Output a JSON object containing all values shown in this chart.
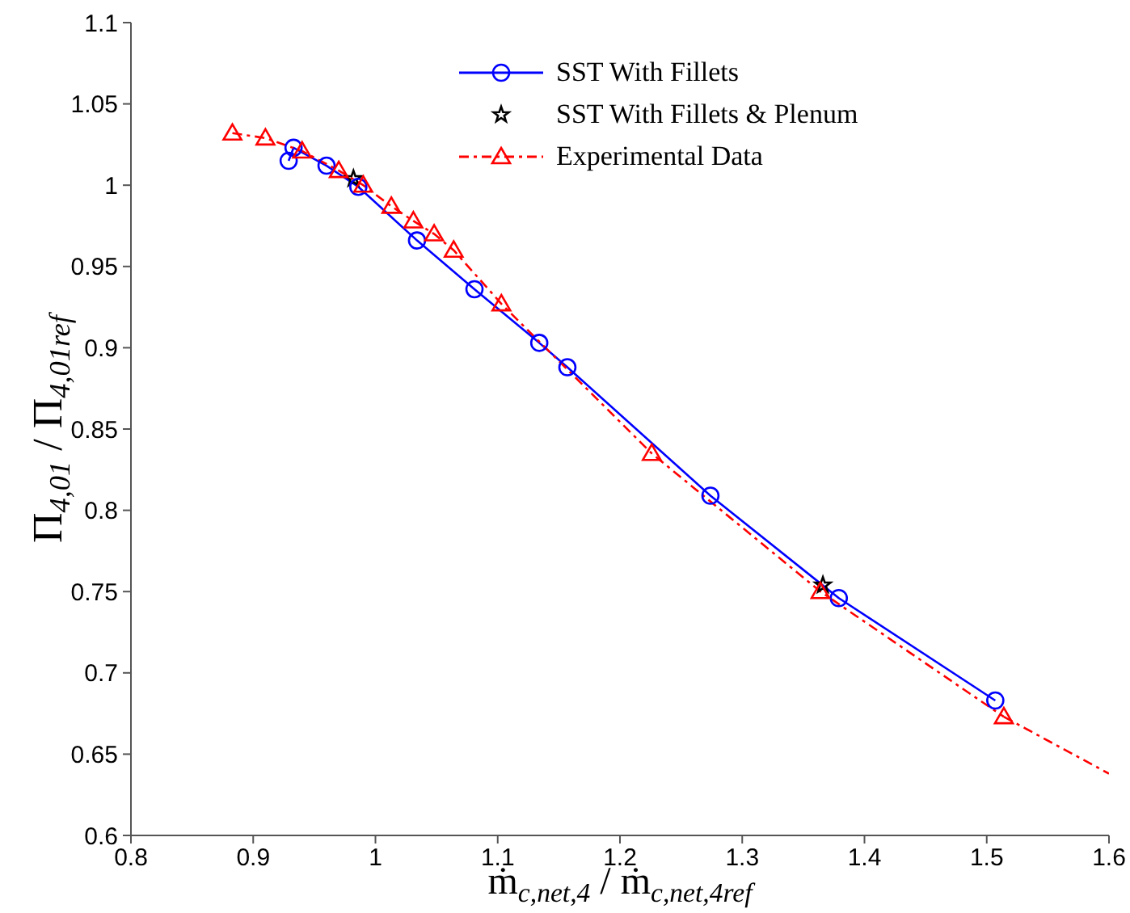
{
  "chart_data": {
    "type": "line",
    "xlabel": "ṁ$_{c,net,4}$ / ṁ$_{c,net,4ref}$",
    "ylabel": "Π$_{4,01}$ / Π$_{4,01ref}$",
    "xlim": [
      0.8,
      1.6
    ],
    "xticks": [
      0.8,
      0.9,
      1,
      1.1,
      1.2,
      1.3,
      1.4,
      1.5,
      1.6
    ],
    "ylim": [
      0.6,
      1.1
    ],
    "yticks": [
      0.6,
      0.65,
      0.7,
      0.75,
      0.8,
      0.85,
      0.9,
      0.95,
      1,
      1.05,
      1.1
    ],
    "grid": false,
    "legend": "top",
    "series": [
      {
        "name": "SST With Fillets",
        "color": "#0000ff",
        "marker": "circle",
        "line_style": "solid",
        "x": [
          0.929,
          0.933,
          0.96,
          0.986,
          1.034,
          1.081,
          1.134,
          1.157,
          1.274,
          1.379,
          1.507
        ],
        "values": [
          1.015,
          1.023,
          1.012,
          0.999,
          0.966,
          0.936,
          0.903,
          0.888,
          0.809,
          0.746,
          0.683
        ]
      },
      {
        "name": "SST With Fillets & Plenum",
        "color": "#000000",
        "type": "scatter",
        "marker": "star",
        "x": [
          0.982,
          1.366
        ],
        "values": [
          1.004,
          0.754
        ]
      },
      {
        "name": "Experimental Data",
        "color": "#ff0000",
        "marker": "triangle",
        "line_style": "dashed",
        "x": [
          0.883,
          0.91,
          0.94,
          0.97,
          0.99,
          1.013,
          1.031,
          1.048,
          1.064,
          1.103,
          1.226,
          1.364,
          1.514
        ],
        "values": [
          1.032,
          1.029,
          1.021,
          1.009,
          1.0,
          0.987,
          0.978,
          0.97,
          0.96,
          0.927,
          0.835,
          0.75,
          0.673
        ]
      },
      {
        "color": "#ff0000",
        "marker": "none",
        "line_style": "dashed",
        "x": [
          1.514,
          1.6
        ],
        "values": [
          0.673,
          0.638
        ]
      }
    ]
  }
}
